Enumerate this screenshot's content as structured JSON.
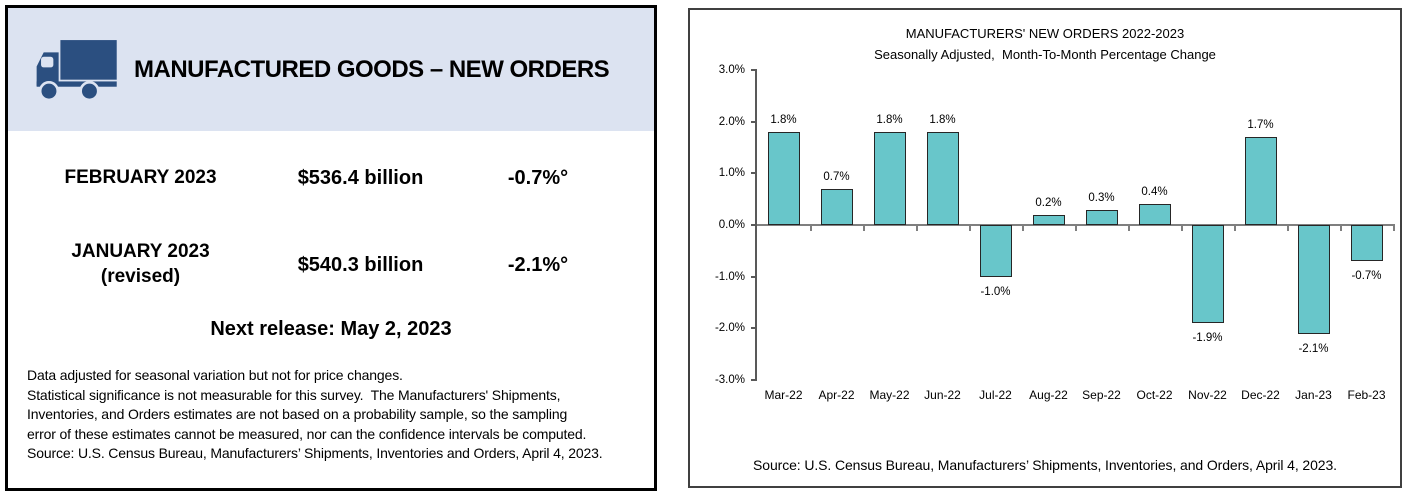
{
  "colors": {
    "header_bg": "#DCE3F1",
    "truck_blue": "#2B4F80",
    "left_panel_border": "#000000",
    "right_panel_border": "#404040",
    "bar_fill": "#68C6CA",
    "bar_border": "#262626",
    "axis_gray": "#595959"
  },
  "left_panel": {
    "header": {
      "title": "MANUFACTURED GOODS – NEW ORDERS",
      "icon": "truck-icon"
    },
    "rows": [
      {
        "period": "FEBRUARY 2023",
        "value": "$536.4 billion",
        "change": "-0.7%°"
      },
      {
        "period": "JANUARY 2023",
        "period_note": "(revised)",
        "value": "$540.3 billion",
        "change": "-2.1%°"
      }
    ],
    "next_release": "Next release: May 2, 2023",
    "footnotes": [
      "Data adjusted for seasonal variation but not for price changes.",
      "Statistical significance is not measurable for this survey.  The Manufacturers' Shipments,",
      "Inventories, and Orders estimates are not based on a probability sample, so the sampling",
      "error of these estimates cannot be measured, nor can the confidence intervals be computed.",
      "Source: U.S. Census Bureau, Manufacturers’ Shipments, Inventories and Orders, April 4, 2023."
    ]
  },
  "right_panel": {
    "source": "Source: U.S. Census Bureau, Manufacturers’ Shipments, Inventories, and Orders, April 4, 2023."
  },
  "chart_data": {
    "type": "bar",
    "title": "MANUFACTURERS' NEW ORDERS 2022-2023",
    "subtitle": "Seasonally Adjusted,  Month-To-Month Percentage Change",
    "categories": [
      "Mar-22",
      "Apr-22",
      "May-22",
      "Jun-22",
      "Jul-22",
      "Aug-22",
      "Sep-22",
      "Oct-22",
      "Nov-22",
      "Dec-22",
      "Jan-23",
      "Feb-23"
    ],
    "values": [
      1.8,
      0.7,
      1.8,
      1.8,
      -1.0,
      0.2,
      0.3,
      0.4,
      -1.9,
      1.7,
      -2.1,
      -0.7
    ],
    "labels": [
      "1.8%",
      "0.7%",
      "1.8%",
      "1.8%",
      "-1.0%",
      "0.2%",
      "0.3%",
      "0.4%",
      "-1.9%",
      "1.7%",
      "-2.1%",
      "-0.7%"
    ],
    "xlabel": "",
    "ylabel": "",
    "ylim": [
      -3,
      3
    ],
    "ytick_labels": [
      "3.0%",
      "2.0%",
      "1.0%",
      "0.0%",
      "-1.0%",
      "-2.0%",
      "-3.0%"
    ],
    "grid": false,
    "legend": false,
    "bar_color": "#68C6CA",
    "bar_border_color": "#262626"
  }
}
